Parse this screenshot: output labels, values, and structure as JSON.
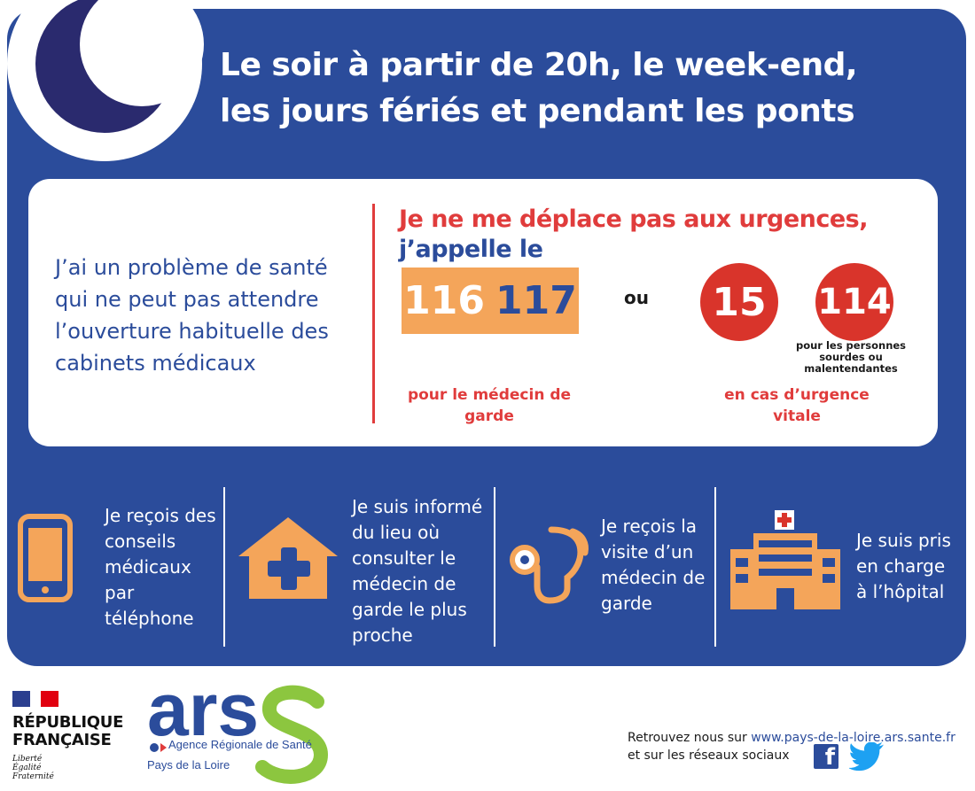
{
  "headline": {
    "line1": "Le soir à partir de 20h, le week-end,",
    "line2": "les jours fériés et pendant les ponts"
  },
  "card": {
    "problem": "J’ai un problème de santé qui ne peut pas attendre l’ouverture habituelle des cabinets médicaux",
    "title": "Je ne me déplace pas aux urgences,",
    "subtitle": "j’appelle le",
    "number_116_part1": "116",
    "number_116_part2": "117",
    "or_label": "ou",
    "number_15": "15",
    "number_114": "114",
    "deaf_note": "pour les personnes sourdes ou malentendantes",
    "label_garde": "pour le médecin de garde",
    "label_vital": "en cas d’urgence vitale"
  },
  "services": [
    {
      "text": "Je reçois des conseils médicaux par téléphone",
      "icon": "phone-icon"
    },
    {
      "text": "Je suis informé du lieu où consulter le médecin de garde le plus proche",
      "icon": "house-cross-icon"
    },
    {
      "text": "Je reçois la visite d’un médecin de garde",
      "icon": "stethoscope-icon"
    },
    {
      "text": "Je suis pris en charge à l’hôpital",
      "icon": "hospital-icon"
    }
  ],
  "footer": {
    "rf_line1": "RÉPUBLIQUE",
    "rf_line2": "FRANÇAISE",
    "rf_motto1": "Liberté",
    "rf_motto2": "Égalité",
    "rf_motto3": "Fraternité",
    "ars_logo": "ars",
    "ars_name": "Agence Régionale de Santé",
    "ars_region": "Pays de la Loire",
    "web_prefix": "Retrouvez nous sur ",
    "web_url": "www.pays-de-la-loire.ars.sante.fr",
    "social_text": "et sur les réseaux sociaux",
    "facebook_letter": "f"
  },
  "colors": {
    "panel_blue": "#2b4c9b",
    "accent_red": "#e03c3c",
    "orange": "#f4a55a",
    "ars_green": "#8cc63f",
    "moon_navy": "#2a2a6e"
  }
}
